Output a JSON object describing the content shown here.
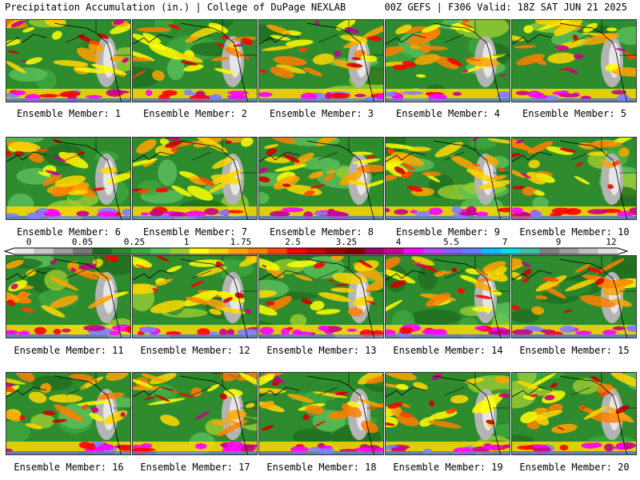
{
  "header": {
    "title_left": "Precipitation Accumulation (in.) | College of DuPage NEXLAB",
    "title_right": "00Z GEFS | F306 Valid: 18Z SAT JUN 21 2025"
  },
  "panels": [
    {
      "label": "Ensemble Member: 1"
    },
    {
      "label": "Ensemble Member: 2"
    },
    {
      "label": "Ensemble Member: 3"
    },
    {
      "label": "Ensemble Member: 4"
    },
    {
      "label": "Ensemble Member: 5"
    },
    {
      "label": "Ensemble Member: 6"
    },
    {
      "label": "Ensemble Member: 7"
    },
    {
      "label": "Ensemble Member: 8"
    },
    {
      "label": "Ensemble Member: 9"
    },
    {
      "label": "Ensemble Member: 10"
    },
    {
      "label": "Ensemble Member: 11"
    },
    {
      "label": "Ensemble Member: 12"
    },
    {
      "label": "Ensemble Member: 13"
    },
    {
      "label": "Ensemble Member: 14"
    },
    {
      "label": "Ensemble Member: 15"
    },
    {
      "label": "Ensemble Member: 16"
    },
    {
      "label": "Ensemble Member: 17"
    },
    {
      "label": "Ensemble Member: 18"
    },
    {
      "label": "Ensemble Member: 19"
    },
    {
      "label": "Ensemble Member: 20"
    }
  ],
  "colorbar": {
    "tick_labels": [
      "0",
      "0.05",
      "0.25",
      "1",
      "1.75",
      "2.5",
      "3.25",
      "4",
      "5.5",
      "7",
      "9",
      "12"
    ],
    "colors": [
      "#e8e8e8",
      "#c8c8c8",
      "#a0a0a0",
      "#787878",
      "#1f6e1f",
      "#2e8b2e",
      "#3fa83f",
      "#5cc05c",
      "#9acd32",
      "#ffff00",
      "#ffd700",
      "#ffa500",
      "#ff7f00",
      "#ff4500",
      "#ff0000",
      "#d00000",
      "#a00000",
      "#800000",
      "#a0006a",
      "#c8008c",
      "#ff00ff",
      "#c040ff",
      "#8060ff",
      "#6080ff",
      "#00c0ff",
      "#00e0e0",
      "#40c0a0",
      "#808080",
      "#a0a0a0",
      "#c0c0c0",
      "#e0e0e0"
    ]
  }
}
